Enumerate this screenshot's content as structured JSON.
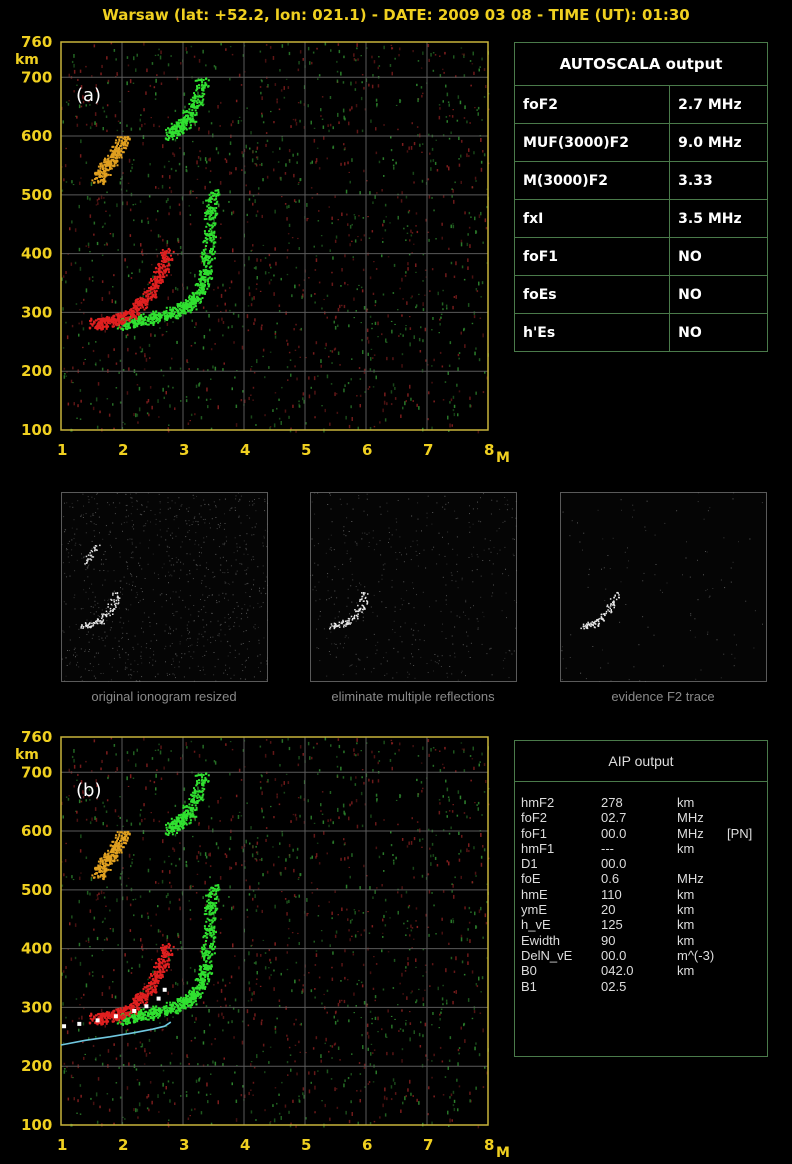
{
  "header": {
    "title": "Warsaw (lat: +52.2, lon: 021.1) - DATE: 2009 03 08 - TIME (UT): 01:30"
  },
  "chart_data": [
    {
      "type": "scatter",
      "panel_label": "(a)",
      "xlabel": "MHz",
      "ylabel": "km",
      "xlim": [
        1,
        8
      ],
      "ylim": [
        100,
        760
      ],
      "x_ticks": [
        "1",
        "2",
        "3",
        "4",
        "5",
        "6",
        "7",
        "8"
      ],
      "y_ticks": [
        "100",
        "200",
        "300",
        "400",
        "500",
        "600",
        "700",
        "760"
      ],
      "grid": true,
      "series": [
        {
          "color": "#30e030",
          "points": [
            [
              2.0,
              282
            ],
            [
              2.2,
              285
            ],
            [
              2.4,
              289
            ],
            [
              2.6,
              294
            ],
            [
              2.8,
              300
            ],
            [
              3.0,
              308
            ],
            [
              3.1,
              315
            ],
            [
              3.2,
              326
            ],
            [
              3.3,
              342
            ],
            [
              3.35,
              365
            ],
            [
              3.4,
              398
            ],
            [
              3.43,
              430
            ],
            [
              3.45,
              470
            ],
            [
              3.47,
              500
            ]
          ]
        },
        {
          "color": "#e02020",
          "points": [
            [
              1.55,
              282
            ],
            [
              1.7,
              282
            ],
            [
              1.85,
              286
            ],
            [
              2.0,
              292
            ],
            [
              2.15,
              300
            ],
            [
              2.3,
              316
            ],
            [
              2.45,
              334
            ],
            [
              2.55,
              355
            ],
            [
              2.65,
              376
            ],
            [
              2.72,
              400
            ]
          ]
        },
        {
          "color": "#e0a020",
          "points": [
            [
              1.6,
              530
            ],
            [
              1.7,
              545
            ],
            [
              1.8,
              560
            ],
            [
              1.9,
              575
            ],
            [
              2.0,
              590
            ]
          ]
        },
        {
          "color": "#30e030",
          "points": [
            [
              2.8,
              605
            ],
            [
              2.9,
              613
            ],
            [
              3.0,
              622
            ],
            [
              3.1,
              636
            ],
            [
              3.2,
              660
            ],
            [
              3.3,
              690
            ]
          ]
        }
      ]
    },
    {
      "type": "scatter",
      "panel_label": "(b)",
      "xlabel": "MHz",
      "ylabel": "km",
      "xlim": [
        1,
        8
      ],
      "ylim": [
        100,
        760
      ],
      "x_ticks": [
        "1",
        "2",
        "3",
        "4",
        "5",
        "6",
        "7",
        "8"
      ],
      "y_ticks": [
        "100",
        "200",
        "300",
        "400",
        "500",
        "600",
        "700",
        "760"
      ],
      "grid": true,
      "series": [
        {
          "color": "#30e030",
          "points": [
            [
              2.0,
              282
            ],
            [
              2.2,
              285
            ],
            [
              2.4,
              289
            ],
            [
              2.6,
              294
            ],
            [
              2.8,
              300
            ],
            [
              3.0,
              308
            ],
            [
              3.1,
              315
            ],
            [
              3.2,
              326
            ],
            [
              3.3,
              342
            ],
            [
              3.35,
              365
            ],
            [
              3.4,
              398
            ],
            [
              3.43,
              430
            ],
            [
              3.45,
              470
            ],
            [
              3.47,
              500
            ]
          ]
        },
        {
          "color": "#e02020",
          "points": [
            [
              1.55,
              282
            ],
            [
              1.7,
              282
            ],
            [
              1.85,
              286
            ],
            [
              2.0,
              292
            ],
            [
              2.15,
              300
            ],
            [
              2.3,
              316
            ],
            [
              2.45,
              334
            ],
            [
              2.55,
              355
            ],
            [
              2.65,
              376
            ],
            [
              2.72,
              400
            ]
          ]
        },
        {
          "color": "#e0a020",
          "points": [
            [
              1.6,
              530
            ],
            [
              1.7,
              545
            ],
            [
              1.8,
              560
            ],
            [
              1.9,
              575
            ],
            [
              2.0,
              590
            ]
          ]
        },
        {
          "color": "#30e030",
          "points": [
            [
              2.8,
              605
            ],
            [
              2.9,
              613
            ],
            [
              3.0,
              622
            ],
            [
              3.1,
              636
            ],
            [
              3.2,
              660
            ],
            [
              3.3,
              690
            ]
          ]
        },
        {
          "color": "#ffffff",
          "style": "dotted",
          "points": [
            [
              1.05,
              268
            ],
            [
              1.3,
              272
            ],
            [
              1.6,
              278
            ],
            [
              1.9,
              285
            ],
            [
              2.2,
              294
            ],
            [
              2.4,
              302
            ],
            [
              2.6,
              315
            ],
            [
              2.7,
              330
            ]
          ]
        },
        {
          "color": "#70c8e0",
          "style": "line",
          "points": [
            [
              1.0,
              236
            ],
            [
              1.4,
              244
            ],
            [
              1.8,
              250
            ],
            [
              2.2,
              257
            ],
            [
              2.5,
              263
            ],
            [
              2.7,
              268
            ],
            [
              2.8,
              275
            ]
          ]
        }
      ]
    }
  ],
  "autoscala": {
    "title": "AUTOSCALA output",
    "rows": [
      {
        "name": "foF2",
        "value": "2.7 MHz"
      },
      {
        "name": "MUF(3000)F2",
        "value": "9.0 MHz"
      },
      {
        "name": "M(3000)F2",
        "value": "3.33"
      },
      {
        "name": "fxI",
        "value": "3.5 MHz"
      },
      {
        "name": "foF1",
        "value": "NO"
      },
      {
        "name": "foEs",
        "value": "NO"
      },
      {
        "name": "h'Es",
        "value": "NO"
      }
    ]
  },
  "aip": {
    "title": "AIP output",
    "rows": [
      {
        "name": "hmF2",
        "value": "278",
        "unit": "km",
        "extra": ""
      },
      {
        "name": "foF2",
        "value": "02.7",
        "unit": "MHz",
        "extra": ""
      },
      {
        "name": "foF1",
        "value": "00.0",
        "unit": "MHz",
        "extra": "[PN]"
      },
      {
        "name": "hmF1",
        "value": "---",
        "unit": "km",
        "extra": ""
      },
      {
        "name": "D1",
        "value": "00.0",
        "unit": "",
        "extra": ""
      },
      {
        "name": "foE",
        "value": "0.6",
        "unit": "MHz",
        "extra": ""
      },
      {
        "name": "hmE",
        "value": "110",
        "unit": "km",
        "extra": ""
      },
      {
        "name": "ymE",
        "value": "20",
        "unit": "km",
        "extra": ""
      },
      {
        "name": "h_vE",
        "value": "125",
        "unit": "km",
        "extra": ""
      },
      {
        "name": "Ewidth",
        "value": "90",
        "unit": "km",
        "extra": ""
      },
      {
        "name": "DelN_vE",
        "value": "00.0",
        "unit": "m^(-3)",
        "extra": ""
      },
      {
        "name": "B0",
        "value": "042.0",
        "unit": "km",
        "extra": ""
      },
      {
        "name": "B1",
        "value": "02.5",
        "unit": "",
        "extra": ""
      }
    ]
  },
  "thumbnails": [
    {
      "caption": "original ionogram resized"
    },
    {
      "caption": "eliminate multiple reflections"
    },
    {
      "caption": "evidence F2 trace"
    }
  ]
}
